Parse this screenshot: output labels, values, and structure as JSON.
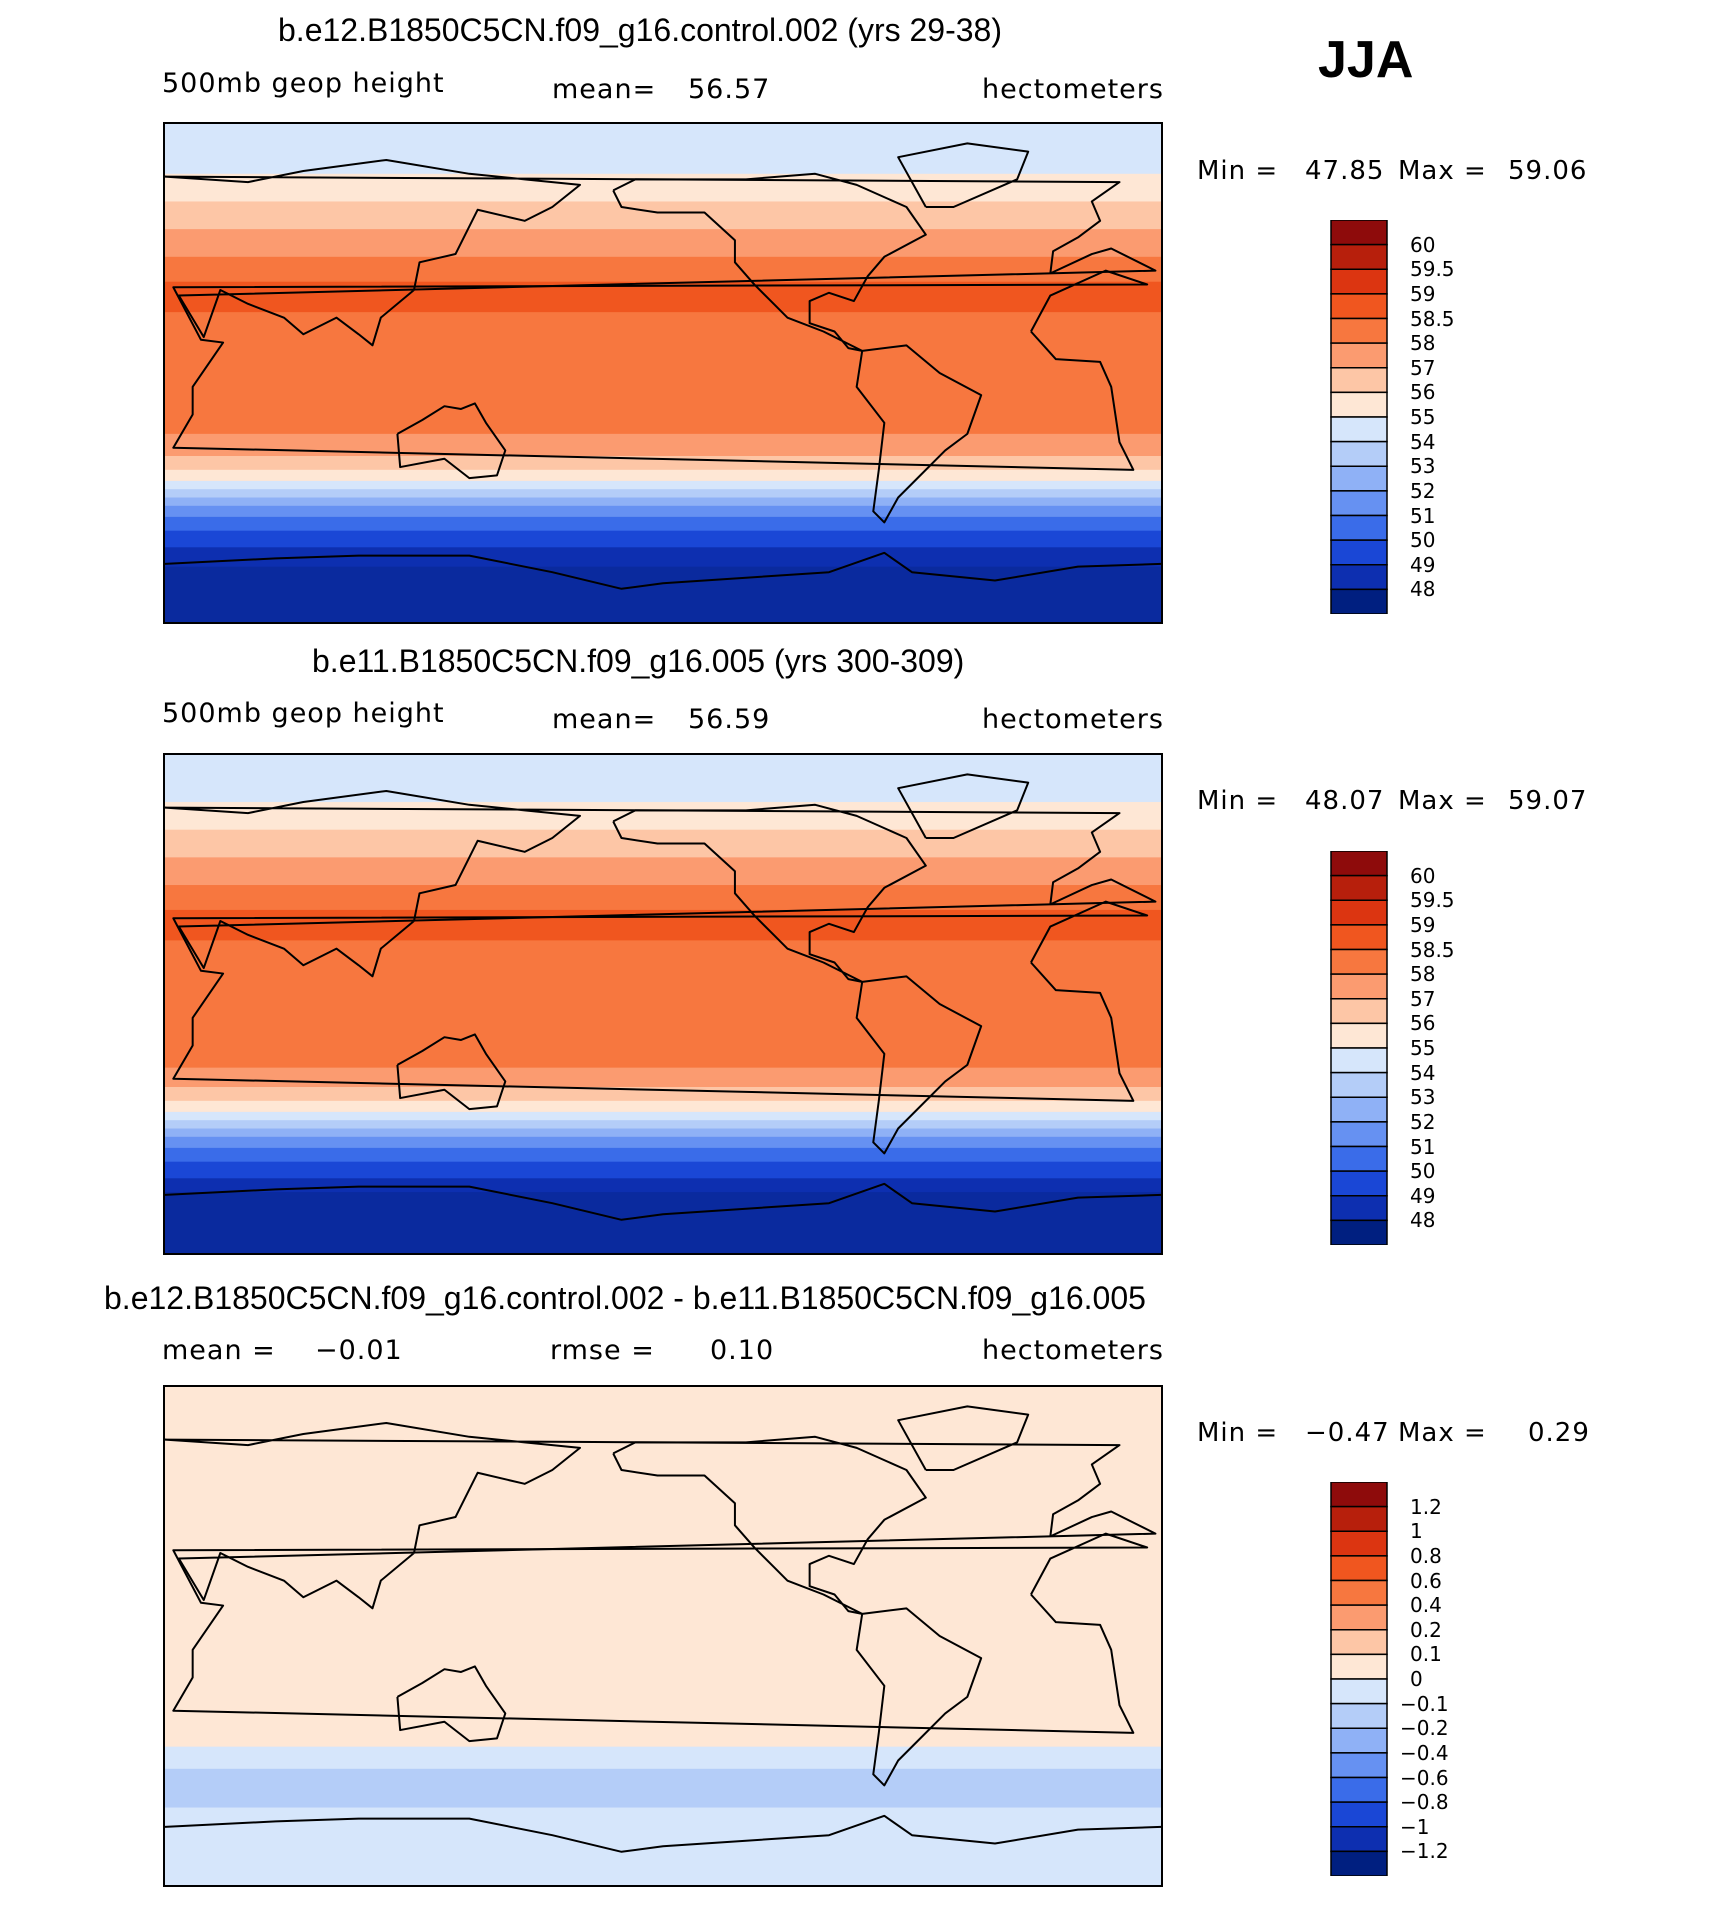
{
  "season_label": "JJA",
  "chart_data": [
    {
      "type": "heatmap",
      "title": "b.e12.B1850C5CN.f09_g16.control.002 (yrs 29-38)",
      "variable": "500mb  geop  height",
      "stat_label": "mean=",
      "stat_value": "56.57",
      "units": "hectometers",
      "min_label": "Min =",
      "min_value": "47.85",
      "max_label": "Max =",
      "max_value": "59.06",
      "colorbar": {
        "levels": [
          "60",
          "59.5",
          "59",
          "58.5",
          "58",
          "57",
          "56",
          "55",
          "54",
          "53",
          "52",
          "51",
          "50",
          "49",
          "48"
        ],
        "colors": [
          "#8e0b0b",
          "#b71f0c",
          "#dc3511",
          "#f0561f",
          "#f7773f",
          "#fb9b70",
          "#fdc6a6",
          "#fee7d5",
          "#d6e6fb",
          "#b4cdf8",
          "#8fb1f6",
          "#6691f2",
          "#3a6ce9",
          "#1a47d6",
          "#0d2fb0",
          "#001f80"
        ]
      },
      "map_bands": [
        {
          "lat": 90,
          "color": "#d6e6fb"
        },
        {
          "lat": 72,
          "color": "#fee7d5"
        },
        {
          "lat": 62,
          "color": "#fdc6a6"
        },
        {
          "lat": 52,
          "color": "#fb9b70"
        },
        {
          "lat": 42,
          "color": "#f7773f"
        },
        {
          "lat": 33,
          "color": "#f0561f"
        },
        {
          "lat": 22,
          "color": "#f7773f"
        },
        {
          "lat": -22,
          "color": "#fb9b70"
        },
        {
          "lat": -30,
          "color": "#fdc6a6"
        },
        {
          "lat": -35,
          "color": "#fee7d5"
        },
        {
          "lat": -39,
          "color": "#d6e6fb"
        },
        {
          "lat": -42,
          "color": "#b4cdf8"
        },
        {
          "lat": -45,
          "color": "#8fb1f6"
        },
        {
          "lat": -48,
          "color": "#6691f2"
        },
        {
          "lat": -52,
          "color": "#3a6ce9"
        },
        {
          "lat": -57,
          "color": "#1a47d6"
        },
        {
          "lat": -63,
          "color": "#0d2fb0"
        },
        {
          "lat": -70,
          "color": "#0a2a9e"
        }
      ]
    },
    {
      "type": "heatmap",
      "title": "b.e11.B1850C5CN.f09_g16.005 (yrs 300-309)",
      "variable": "500mb  geop  height",
      "stat_label": "mean=",
      "stat_value": "56.59",
      "units": "hectometers",
      "min_label": "Min =",
      "min_value": "48.07",
      "max_label": "Max =",
      "max_value": "59.07",
      "colorbar": {
        "levels": [
          "60",
          "59.5",
          "59",
          "58.5",
          "58",
          "57",
          "56",
          "55",
          "54",
          "53",
          "52",
          "51",
          "50",
          "49",
          "48"
        ],
        "colors": [
          "#8e0b0b",
          "#b71f0c",
          "#dc3511",
          "#f0561f",
          "#f7773f",
          "#fb9b70",
          "#fdc6a6",
          "#fee7d5",
          "#d6e6fb",
          "#b4cdf8",
          "#8fb1f6",
          "#6691f2",
          "#3a6ce9",
          "#1a47d6",
          "#0d2fb0",
          "#001f80"
        ]
      },
      "map_bands": [
        {
          "lat": 90,
          "color": "#d6e6fb"
        },
        {
          "lat": 73,
          "color": "#fee7d5"
        },
        {
          "lat": 63,
          "color": "#fdc6a6"
        },
        {
          "lat": 53,
          "color": "#fb9b70"
        },
        {
          "lat": 43,
          "color": "#f7773f"
        },
        {
          "lat": 34,
          "color": "#f0561f"
        },
        {
          "lat": 23,
          "color": "#f7773f"
        },
        {
          "lat": -23,
          "color": "#fb9b70"
        },
        {
          "lat": -30,
          "color": "#fdc6a6"
        },
        {
          "lat": -35,
          "color": "#fee7d5"
        },
        {
          "lat": -39,
          "color": "#d6e6fb"
        },
        {
          "lat": -42,
          "color": "#b4cdf8"
        },
        {
          "lat": -45,
          "color": "#8fb1f6"
        },
        {
          "lat": -48,
          "color": "#6691f2"
        },
        {
          "lat": -52,
          "color": "#3a6ce9"
        },
        {
          "lat": -57,
          "color": "#1a47d6"
        },
        {
          "lat": -63,
          "color": "#0d2fb0"
        },
        {
          "lat": -68,
          "color": "#0a2a9e"
        }
      ]
    },
    {
      "type": "heatmap",
      "title": "b.e12.B1850C5CN.f09_g16.control.002 - b.e11.B1850C5CN.f09_g16.005",
      "variable": "mean =",
      "variable_value": "−0.01",
      "stat_label": "rmse =",
      "stat_value": "0.10",
      "units": "hectometers",
      "min_label": "Min =",
      "min_value": "−0.47",
      "max_label": "Max =",
      "max_value": "0.29",
      "colorbar": {
        "levels": [
          "1.2",
          "1",
          "0.8",
          "0.6",
          "0.4",
          "0.2",
          "0.1",
          "0",
          "−0.1",
          "−0.2",
          "−0.4",
          "−0.6",
          "−0.8",
          "−1",
          "−1.2"
        ],
        "colors": [
          "#8e0b0b",
          "#b71f0c",
          "#dc3511",
          "#f0561f",
          "#f7773f",
          "#fb9b70",
          "#fdc6a6",
          "#fee7d5",
          "#d6e6fb",
          "#b4cdf8",
          "#8fb1f6",
          "#6691f2",
          "#3a6ce9",
          "#1a47d6",
          "#0d2fb0",
          "#001f80"
        ]
      },
      "map_bands": [
        {
          "lat": 90,
          "color": "#fee7d5"
        },
        {
          "lat": -40,
          "color": "#d6e6fb"
        },
        {
          "lat": -48,
          "color": "#b4cdf8"
        },
        {
          "lat": -62,
          "color": "#d6e6fb"
        }
      ]
    }
  ]
}
